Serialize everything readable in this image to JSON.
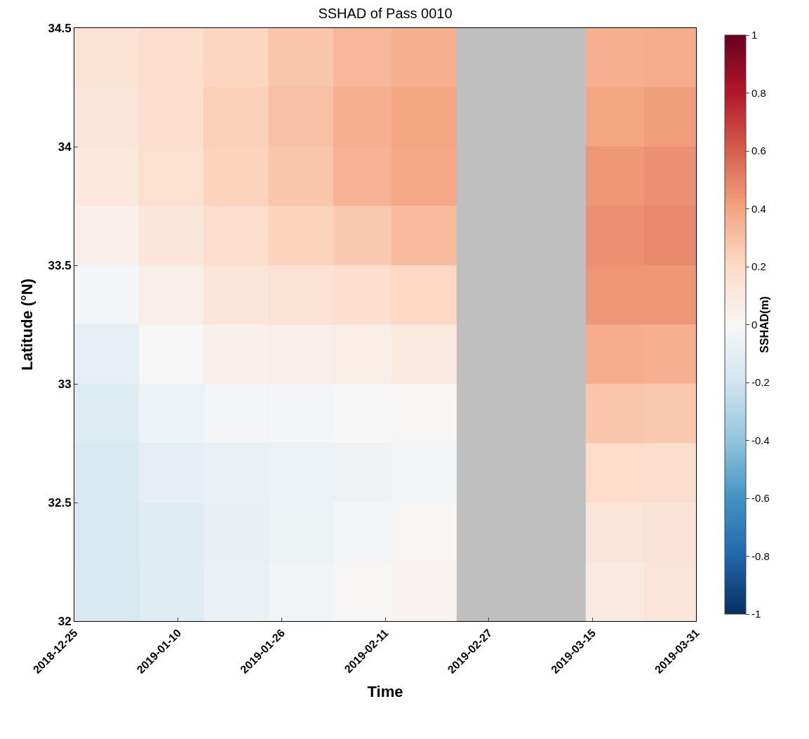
{
  "chart_data": {
    "type": "heatmap",
    "title": "SSHAD of Pass 0010",
    "xlabel": "Time",
    "ylabel": "Latitude (°N)",
    "clabel": "SSHAD(m)",
    "x": [
      "2018-12-30",
      "2019-01-09",
      "2019-01-19",
      "2019-01-29",
      "2019-02-08",
      "2019-02-17",
      "2019-02-27",
      "2019-03-10",
      "2019-03-19",
      "2019-03-27"
    ],
    "y": [
      34.375,
      34.125,
      33.875,
      33.625,
      33.375,
      33.125,
      32.875,
      32.625,
      32.375,
      32.125
    ],
    "cells": [
      [
        0.15,
        0.18,
        0.22,
        0.28,
        0.33,
        0.36,
        null,
        null,
        0.36,
        0.37
      ],
      [
        0.13,
        0.17,
        0.24,
        0.3,
        0.36,
        0.4,
        null,
        null,
        0.4,
        0.42
      ],
      [
        0.11,
        0.16,
        0.23,
        0.28,
        0.35,
        0.39,
        null,
        null,
        0.44,
        0.46
      ],
      [
        0.06,
        0.12,
        0.18,
        0.23,
        0.27,
        0.32,
        null,
        null,
        0.46,
        0.48
      ],
      [
        -0.02,
        0.06,
        0.13,
        0.15,
        0.17,
        0.21,
        null,
        null,
        0.44,
        0.44
      ],
      [
        -0.09,
        0.0,
        0.05,
        0.06,
        0.07,
        0.1,
        null,
        null,
        0.37,
        0.36
      ],
      [
        -0.14,
        -0.06,
        -0.02,
        -0.02,
        0.0,
        0.01,
        null,
        null,
        0.28,
        0.27
      ],
      [
        -0.16,
        -0.1,
        -0.07,
        -0.06,
        -0.04,
        -0.02,
        null,
        null,
        0.19,
        0.18
      ],
      [
        -0.17,
        -0.12,
        -0.08,
        -0.05,
        -0.02,
        0.01,
        null,
        null,
        0.13,
        0.14
      ],
      [
        -0.16,
        -0.12,
        -0.07,
        -0.03,
        0.01,
        0.03,
        null,
        null,
        0.1,
        0.13
      ]
    ],
    "xlim": [
      "2018-12-25",
      "2019-03-31"
    ],
    "xticks": [
      {
        "value": "2018-12-25",
        "label": "2018-12-25"
      },
      {
        "value": "2019-01-10",
        "label": "2019-01-10"
      },
      {
        "value": "2019-01-26",
        "label": "2019-01-26"
      },
      {
        "value": "2019-02-11",
        "label": "2019-02-11"
      },
      {
        "value": "2019-02-27",
        "label": "2019-02-27"
      },
      {
        "value": "2019-03-15",
        "label": "2019-03-15"
      },
      {
        "value": "2019-03-31",
        "label": "2019-03-31"
      }
    ],
    "ylim": [
      32,
      34.5
    ],
    "yticks": [
      32,
      32.5,
      33,
      33.5,
      34,
      34.5
    ],
    "clim": [
      -1,
      1
    ],
    "cticks": [
      -1,
      -0.8,
      -0.6,
      -0.4,
      -0.2,
      0,
      0.2,
      0.4,
      0.6,
      0.8,
      1
    ]
  }
}
